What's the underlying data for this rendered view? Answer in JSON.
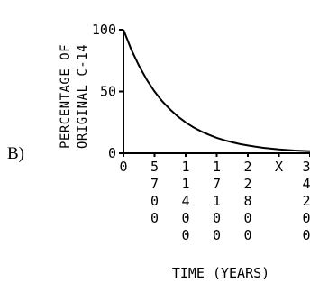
{
  "option_label": "B)",
  "chart_data": {
    "type": "line",
    "title": "",
    "ylabel_lines": [
      "PERCENTAGE OF",
      "ORIGINAL C-14"
    ],
    "xlabel": "TIME (YEARS)",
    "ylim": [
      0,
      100
    ],
    "xlim": [
      0,
      34200
    ],
    "y_ticks": [
      {
        "value": 0,
        "label": "0"
      },
      {
        "value": 50,
        "label": "50"
      },
      {
        "value": 100,
        "label": "100"
      }
    ],
    "x_ticks": [
      {
        "value": 0,
        "label": "0"
      },
      {
        "value": 5700,
        "label": "5700"
      },
      {
        "value": 11400,
        "label": "11400"
      },
      {
        "value": 17100,
        "label": "17100"
      },
      {
        "value": 22800,
        "label": "22800"
      },
      {
        "value": 28500,
        "label": "X"
      },
      {
        "value": 34200,
        "label": "34200"
      }
    ],
    "series": [
      {
        "x": [
          0,
          1425,
          2850,
          4275,
          5700,
          7125,
          8550,
          9975,
          11400,
          12825,
          14250,
          15675,
          17100,
          18525,
          19950,
          21375,
          22800,
          24225,
          25650,
          27075,
          28500,
          29925,
          31350,
          32775,
          34200
        ],
        "y": [
          100,
          84.1,
          70.7,
          59.5,
          50,
          42,
          35.4,
          29.7,
          25,
          21,
          17.7,
          14.9,
          12.5,
          10.5,
          8.8,
          7.4,
          6.3,
          5.3,
          4.4,
          3.7,
          3.1,
          2.6,
          2.2,
          1.9,
          1.6
        ]
      }
    ]
  }
}
